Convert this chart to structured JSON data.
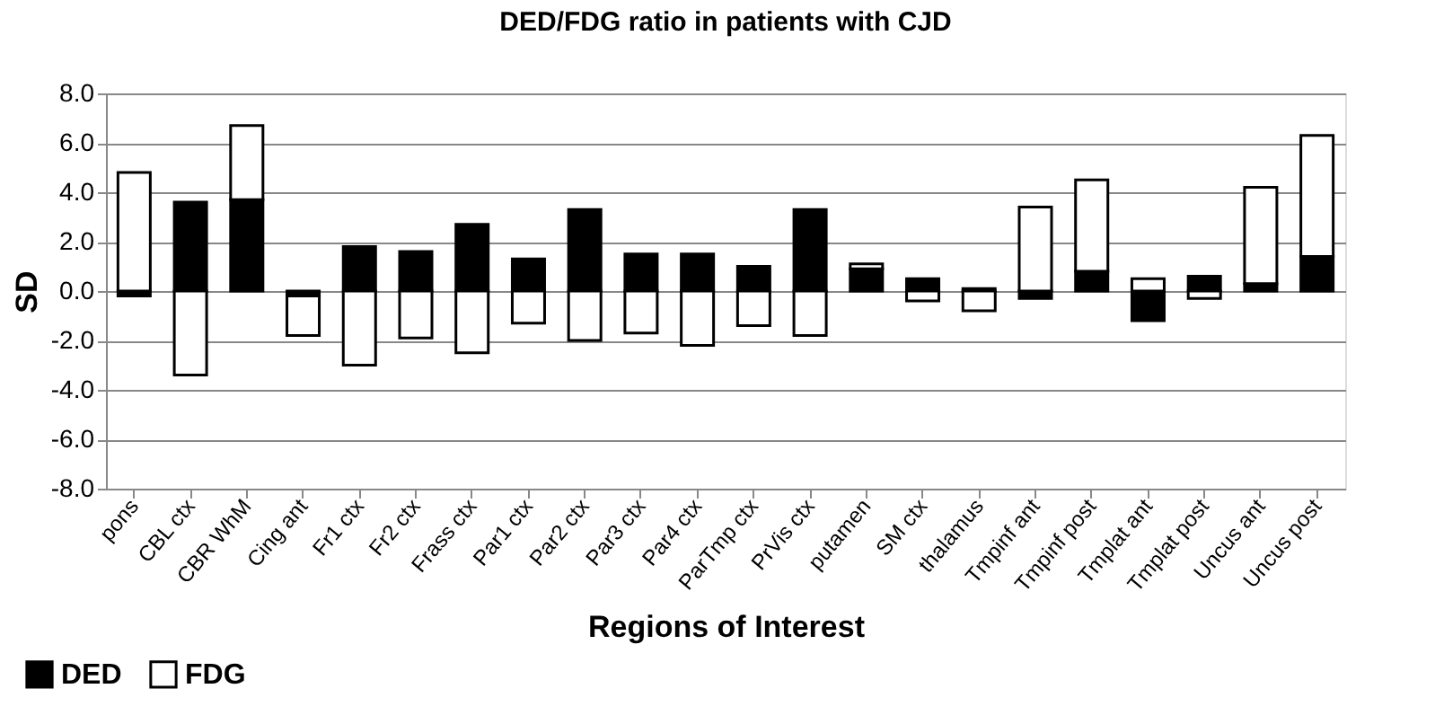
{
  "chart_data": {
    "type": "bar",
    "stacked": true,
    "title": "DED/FDG ratio in patients with CJD",
    "xlabel": "Regions of Interest",
    "ylabel": "SD",
    "categories": [
      "pons",
      "CBL ctx",
      "CBR WhM",
      "Cing ant",
      "Fr1 ctx",
      "Fr2 ctx",
      "Frass ctx",
      "Par1 ctx",
      "Par2 ctx",
      "Par3 ctx",
      "Par4 ctx",
      "ParTmp ctx",
      "PrVis ctx",
      "putamen",
      "SM ctx",
      "thalamus",
      "Tmpinf ant",
      "Tmpinf post",
      "Tmplat ant",
      "Tmplat post",
      "Uncus ant",
      "Uncus post"
    ],
    "series": [
      {
        "name": "DED",
        "color": "#000000",
        "values": [
          -0.2,
          3.6,
          3.7,
          -0.2,
          1.8,
          1.6,
          2.7,
          1.3,
          3.3,
          1.5,
          1.5,
          1.0,
          3.3,
          0.9,
          0.5,
          0.1,
          -0.3,
          0.8,
          -1.2,
          0.6,
          0.3,
          1.4
        ]
      },
      {
        "name": "FDG",
        "color": "#ffffff",
        "values": [
          4.8,
          -3.4,
          3.0,
          -1.6,
          -3.0,
          -1.9,
          -2.5,
          -1.3,
          -2.0,
          -1.7,
          -2.2,
          -1.4,
          -1.8,
          0.2,
          -0.4,
          -0.8,
          3.4,
          3.7,
          0.5,
          -0.3,
          3.9,
          4.9
        ]
      }
    ],
    "ylim": [
      -8,
      8
    ],
    "yticks": [
      {
        "value": -8,
        "label": "-8.0"
      },
      {
        "value": -6,
        "label": "-6.0"
      },
      {
        "value": -4,
        "label": "-4.0"
      },
      {
        "value": -2,
        "label": "-2.0"
      },
      {
        "value": 0,
        "label": "0.0"
      },
      {
        "value": 2,
        "label": "2.0"
      },
      {
        "value": 4,
        "label": "4.0"
      },
      {
        "value": 6,
        "label": "6.0"
      },
      {
        "value": 8,
        "label": "8.0"
      }
    ],
    "grid": "y",
    "legend": "bottom left"
  }
}
